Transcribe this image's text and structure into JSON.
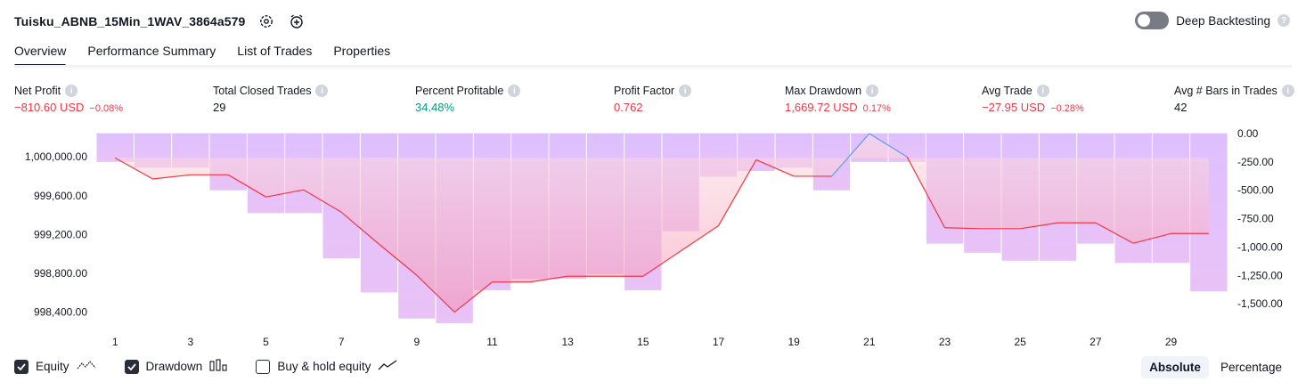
{
  "header": {
    "strategy_name": "Tuisku_ABNB_15Min_1WAV_3864a579",
    "deep_backtesting_label": "Deep Backtesting"
  },
  "tabs": [
    {
      "label": "Overview",
      "active": true
    },
    {
      "label": "Performance Summary",
      "active": false
    },
    {
      "label": "List of Trades",
      "active": false
    },
    {
      "label": "Properties",
      "active": false
    }
  ],
  "stats": {
    "net_profit": {
      "label": "Net Profit",
      "value": "−810.60 USD",
      "pct": "−0.08%"
    },
    "total_closed_trades": {
      "label": "Total Closed Trades",
      "value": "29"
    },
    "percent_profitable": {
      "label": "Percent Profitable",
      "value": "34.48%"
    },
    "profit_factor": {
      "label": "Profit Factor",
      "value": "0.762"
    },
    "max_drawdown": {
      "label": "Max Drawdown",
      "value": "1,669.72 USD",
      "pct": "0.17%"
    },
    "avg_trade": {
      "label": "Avg Trade",
      "value": "−27.95 USD",
      "pct": "−0.28%"
    },
    "avg_bars": {
      "label": "Avg # Bars in Trades",
      "value": "42"
    }
  },
  "chart_data": {
    "type": "line",
    "x": [
      1,
      2,
      3,
      4,
      5,
      6,
      7,
      8,
      9,
      10,
      11,
      12,
      13,
      14,
      15,
      16,
      17,
      18,
      19,
      20,
      21,
      22,
      23,
      24,
      25,
      26,
      27,
      28,
      29,
      30
    ],
    "x_tick_labels": [
      "1",
      "3",
      "5",
      "7",
      "9",
      "11",
      "13",
      "15",
      "17",
      "19",
      "21",
      "23",
      "25",
      "27",
      "29"
    ],
    "equity_values": [
      999990,
      999772,
      999815,
      999815,
      999587,
      999660,
      999430,
      999100,
      998780,
      998400,
      998710,
      998710,
      998770,
      998770,
      998770,
      999030,
      999290,
      999970,
      999800,
      999800,
      1000240,
      1000000,
      999270,
      999260,
      999260,
      999320,
      999320,
      999110,
      999210,
      999210
    ],
    "drawdown_values": [
      -250,
      -300,
      -300,
      -500,
      -700,
      -700,
      -1100,
      -1400,
      -1630,
      -1670,
      -1380,
      -1280,
      -1280,
      -1240,
      -1380,
      -860,
      -380,
      -330,
      -300,
      -500,
      -250,
      -250,
      -970,
      -1050,
      -1120,
      -1120,
      -970,
      -1140,
      -1140,
      -1390
    ],
    "y_left_ticks": [
      "1,000,000.00",
      "999,600.00",
      "999,200.00",
      "998,800.00",
      "998,400.00"
    ],
    "y_right_ticks": [
      "0.00",
      "-250.00",
      "-500.00",
      "-750.00",
      "-1,000.00",
      "-1,250.00",
      "-1,500.00"
    ],
    "left_ylim": [
      998240,
      1000240
    ],
    "right_ylim": [
      -1710,
      0
    ],
    "equity_color": "#f23645",
    "equity_up_color": "#5b9cf6",
    "drawdown_color": "#c084fc",
    "series": [
      {
        "name": "Equity"
      },
      {
        "name": "Drawdown"
      }
    ]
  },
  "legend": {
    "equity_label": "Equity",
    "drawdown_label": "Drawdown",
    "buy_hold_label": "Buy & hold equity"
  },
  "scale_toggle": {
    "absolute_label": "Absolute",
    "percentage_label": "Percentage",
    "selected": "Absolute"
  }
}
